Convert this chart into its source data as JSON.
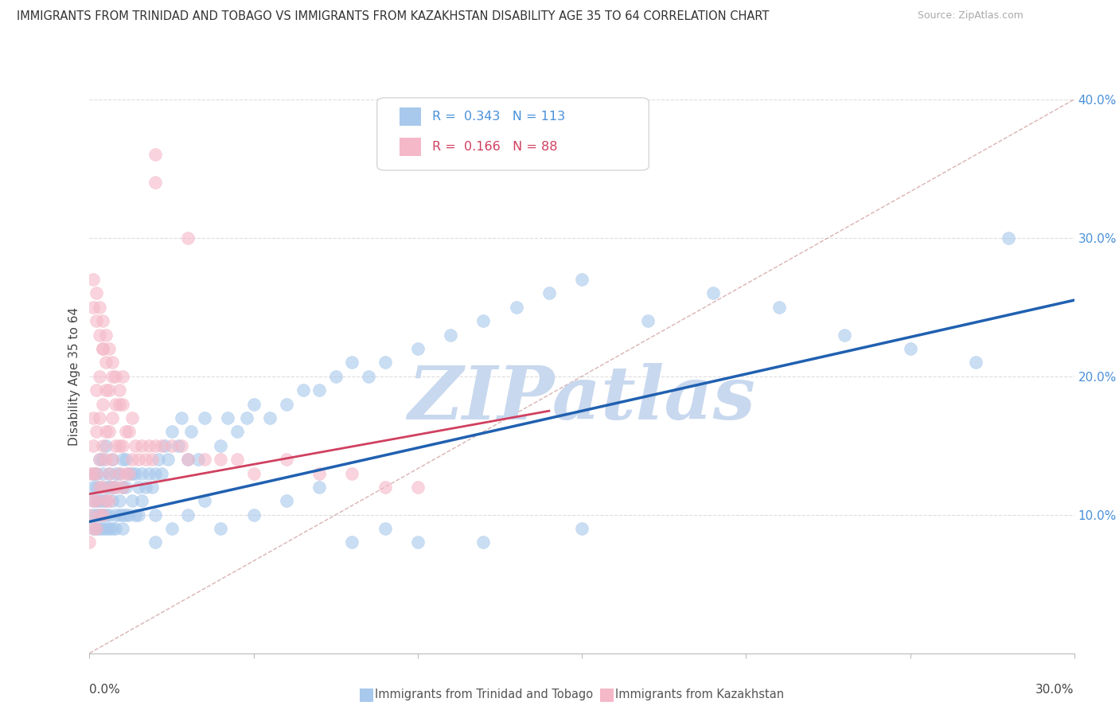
{
  "title": "IMMIGRANTS FROM TRINIDAD AND TOBAGO VS IMMIGRANTS FROM KAZAKHSTAN DISABILITY AGE 35 TO 64 CORRELATION CHART",
  "source": "Source: ZipAtlas.com",
  "ylabel": "Disability Age 35 to 64",
  "xlim": [
    0.0,
    0.3
  ],
  "ylim": [
    0.0,
    0.4
  ],
  "ytick_vals": [
    0.0,
    0.1,
    0.2,
    0.3,
    0.4
  ],
  "ytick_labels": [
    "",
    "10.0%",
    "20.0%",
    "30.0%",
    "40.0%"
  ],
  "xtick_vals": [
    0.0,
    0.05,
    0.1,
    0.15,
    0.2,
    0.25,
    0.3
  ],
  "xtick_labels": [
    "",
    "",
    "",
    "",
    "",
    "",
    ""
  ],
  "blue_label": "Immigrants from Trinidad and Tobago",
  "pink_label": "Immigrants from Kazakhstan",
  "blue_color": "#A8C8EC",
  "pink_color": "#F5B8C8",
  "blue_line_color": "#2060B0",
  "pink_line_color": "#D04060",
  "blue_R": 0.343,
  "blue_N": 113,
  "pink_R": 0.166,
  "pink_N": 88,
  "blue_line_y0": 0.095,
  "blue_line_y1": 0.255,
  "pink_line_y0": 0.115,
  "pink_line_y1": 0.175,
  "diag_color": "#D0A0A0",
  "watermark": "ZIPatlas",
  "watermark_color": "#C8D8EE",
  "bg_color": "#FFFFFF",
  "grid_color": "#DDDDDD",
  "blue_x": [
    0.001,
    0.001,
    0.001,
    0.001,
    0.001,
    0.002,
    0.002,
    0.002,
    0.002,
    0.002,
    0.003,
    0.003,
    0.003,
    0.003,
    0.003,
    0.004,
    0.004,
    0.004,
    0.004,
    0.004,
    0.005,
    0.005,
    0.005,
    0.005,
    0.005,
    0.006,
    0.006,
    0.006,
    0.006,
    0.007,
    0.007,
    0.007,
    0.007,
    0.008,
    0.008,
    0.008,
    0.008,
    0.009,
    0.009,
    0.009,
    0.01,
    0.01,
    0.01,
    0.01,
    0.011,
    0.011,
    0.011,
    0.012,
    0.012,
    0.013,
    0.013,
    0.014,
    0.014,
    0.015,
    0.015,
    0.016,
    0.016,
    0.017,
    0.018,
    0.019,
    0.02,
    0.02,
    0.021,
    0.022,
    0.023,
    0.024,
    0.025,
    0.027,
    0.028,
    0.03,
    0.031,
    0.033,
    0.035,
    0.04,
    0.042,
    0.045,
    0.048,
    0.05,
    0.055,
    0.06,
    0.065,
    0.07,
    0.075,
    0.08,
    0.085,
    0.09,
    0.1,
    0.11,
    0.12,
    0.13,
    0.14,
    0.15,
    0.17,
    0.19,
    0.21,
    0.23,
    0.25,
    0.27,
    0.02,
    0.025,
    0.03,
    0.035,
    0.04,
    0.05,
    0.06,
    0.07,
    0.08,
    0.09,
    0.1,
    0.12,
    0.15,
    0.28
  ],
  "blue_y": [
    0.09,
    0.1,
    0.11,
    0.12,
    0.13,
    0.09,
    0.1,
    0.11,
    0.12,
    0.13,
    0.09,
    0.1,
    0.11,
    0.12,
    0.14,
    0.09,
    0.1,
    0.11,
    0.13,
    0.14,
    0.09,
    0.1,
    0.11,
    0.12,
    0.15,
    0.09,
    0.1,
    0.12,
    0.13,
    0.09,
    0.11,
    0.12,
    0.14,
    0.09,
    0.1,
    0.12,
    0.13,
    0.1,
    0.11,
    0.13,
    0.09,
    0.1,
    0.12,
    0.14,
    0.1,
    0.12,
    0.14,
    0.1,
    0.13,
    0.11,
    0.13,
    0.1,
    0.13,
    0.1,
    0.12,
    0.11,
    0.13,
    0.12,
    0.13,
    0.12,
    0.1,
    0.13,
    0.14,
    0.13,
    0.15,
    0.14,
    0.16,
    0.15,
    0.17,
    0.14,
    0.16,
    0.14,
    0.17,
    0.15,
    0.17,
    0.16,
    0.17,
    0.18,
    0.17,
    0.18,
    0.19,
    0.19,
    0.2,
    0.21,
    0.2,
    0.21,
    0.22,
    0.23,
    0.24,
    0.25,
    0.26,
    0.27,
    0.24,
    0.26,
    0.25,
    0.23,
    0.22,
    0.21,
    0.08,
    0.09,
    0.1,
    0.11,
    0.09,
    0.1,
    0.11,
    0.12,
    0.08,
    0.09,
    0.08,
    0.08,
    0.09,
    0.3
  ],
  "pink_x": [
    0.0,
    0.0,
    0.0,
    0.001,
    0.001,
    0.001,
    0.001,
    0.001,
    0.002,
    0.002,
    0.002,
    0.002,
    0.002,
    0.003,
    0.003,
    0.003,
    0.003,
    0.003,
    0.004,
    0.004,
    0.004,
    0.004,
    0.004,
    0.005,
    0.005,
    0.005,
    0.005,
    0.005,
    0.006,
    0.006,
    0.006,
    0.006,
    0.007,
    0.007,
    0.007,
    0.007,
    0.008,
    0.008,
    0.008,
    0.009,
    0.009,
    0.009,
    0.01,
    0.01,
    0.01,
    0.011,
    0.011,
    0.012,
    0.012,
    0.013,
    0.013,
    0.014,
    0.015,
    0.016,
    0.017,
    0.018,
    0.019,
    0.02,
    0.022,
    0.025,
    0.028,
    0.03,
    0.035,
    0.04,
    0.045,
    0.05,
    0.06,
    0.07,
    0.08,
    0.09,
    0.1,
    0.001,
    0.001,
    0.002,
    0.002,
    0.003,
    0.003,
    0.004,
    0.004,
    0.005,
    0.006,
    0.007,
    0.008,
    0.009,
    0.01,
    0.02,
    0.02,
    0.03
  ],
  "pink_y": [
    0.08,
    0.1,
    0.13,
    0.09,
    0.11,
    0.13,
    0.15,
    0.17,
    0.09,
    0.11,
    0.13,
    0.16,
    0.19,
    0.1,
    0.12,
    0.14,
    0.17,
    0.2,
    0.1,
    0.12,
    0.15,
    0.18,
    0.22,
    0.11,
    0.14,
    0.16,
    0.19,
    0.23,
    0.11,
    0.13,
    0.16,
    0.19,
    0.12,
    0.14,
    0.17,
    0.2,
    0.12,
    0.15,
    0.18,
    0.13,
    0.15,
    0.18,
    0.12,
    0.15,
    0.18,
    0.13,
    0.16,
    0.13,
    0.16,
    0.14,
    0.17,
    0.15,
    0.14,
    0.15,
    0.14,
    0.15,
    0.14,
    0.15,
    0.15,
    0.15,
    0.15,
    0.14,
    0.14,
    0.14,
    0.14,
    0.13,
    0.14,
    0.13,
    0.13,
    0.12,
    0.12,
    0.25,
    0.27,
    0.24,
    0.26,
    0.23,
    0.25,
    0.22,
    0.24,
    0.21,
    0.22,
    0.21,
    0.2,
    0.19,
    0.2,
    0.34,
    0.36,
    0.3
  ]
}
